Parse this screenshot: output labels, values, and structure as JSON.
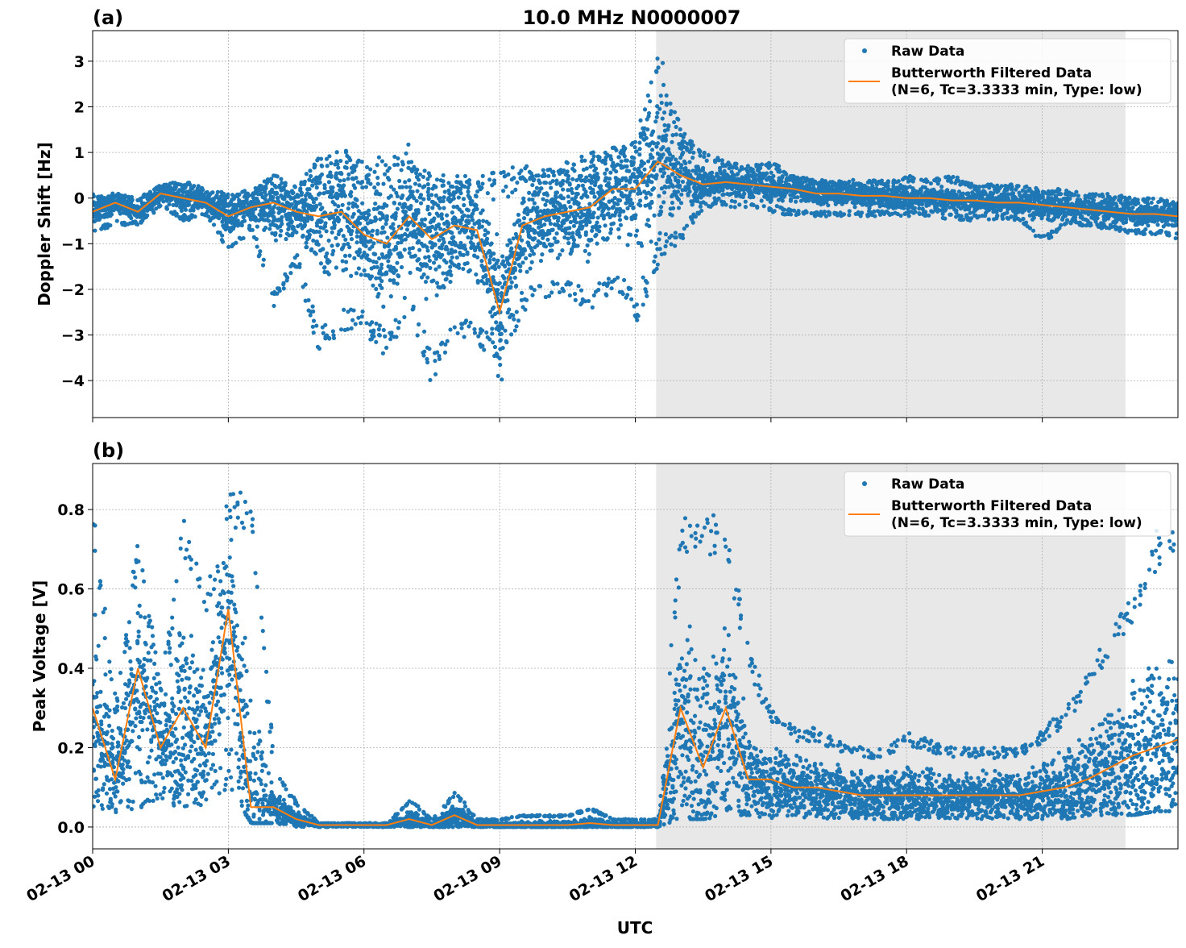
{
  "title": "10.0 MHz N0000007",
  "xlabel": "UTC",
  "x_ticks": [
    "02-13 00",
    "02-13 03",
    "02-13 06",
    "02-13 09",
    "02-13 12",
    "02-13 15",
    "02-13 18",
    "02-13 21"
  ],
  "colors": {
    "raw": "#1f77b4",
    "filtered": "#ff7f0e",
    "shade": "#e8e8e8"
  },
  "chart_data": [
    {
      "type": "scatter",
      "panel_label": "(a)",
      "ylabel": "Doppler Shift [Hz]",
      "x_unit": "hours since 02-13 00 UTC",
      "xlim": [
        0,
        24
      ],
      "ylim": [
        -4.81,
        3.67
      ],
      "y_ticks": [
        "−4",
        "−3",
        "−2",
        "−1",
        "0",
        "1",
        "2",
        "3"
      ],
      "y_tick_values": [
        -4,
        -3,
        -2,
        -1,
        0,
        1,
        2,
        3
      ],
      "grid": true,
      "legend_placement": "top-right",
      "shaded_interval_hours": [
        12.46,
        22.84
      ],
      "legend": [
        "Raw Data",
        "Butterworth Filtered Data",
        "(N=6, Tc=3.3333 min, Type: low)"
      ],
      "x": [
        0,
        0.5,
        1,
        1.5,
        2,
        2.5,
        3,
        3.5,
        4,
        4.5,
        5,
        5.5,
        6,
        6.5,
        7,
        7.5,
        8,
        8.5,
        9,
        9.5,
        10,
        10.5,
        11,
        11.5,
        12,
        12.5,
        13,
        13.5,
        14,
        14.5,
        15,
        15.5,
        16,
        16.5,
        17,
        17.5,
        18,
        18.5,
        19,
        19.5,
        20,
        20.5,
        21,
        21.5,
        22,
        22.5,
        23,
        23.5,
        24
      ],
      "filtered": [
        -0.3,
        -0.1,
        -0.3,
        0.1,
        0,
        -0.1,
        -0.4,
        -0.2,
        -0.1,
        -0.3,
        -0.4,
        -0.3,
        -0.8,
        -1.0,
        -0.4,
        -0.9,
        -0.6,
        -0.7,
        -2.5,
        -0.6,
        -0.4,
        -0.3,
        -0.2,
        0.2,
        0.2,
        0.8,
        0.5,
        0.3,
        0.35,
        0.3,
        0.25,
        0.2,
        0.1,
        0.1,
        0.05,
        0.05,
        0.0,
        0.0,
        -0.05,
        -0.05,
        -0.1,
        -0.1,
        -0.15,
        -0.2,
        -0.25,
        -0.3,
        -0.35,
        -0.35,
        -0.4
      ],
      "raw_min": [
        -0.8,
        -0.6,
        -0.6,
        -0.2,
        -0.5,
        -0.4,
        -1.2,
        -0.7,
        -2.4,
        -1.5,
        -3.5,
        -3.0,
        -3.0,
        -3.5,
        -2.5,
        -4.2,
        -3.0,
        -3.2,
        -4.1,
        -2.5,
        -2.3,
        -2.2,
        -2.5,
        -2.0,
        -2.7,
        -1.5,
        -1.0,
        -0.2,
        -0.2,
        -0.2,
        -0.3,
        -0.4,
        -0.4,
        -0.4,
        -0.4,
        -0.4,
        -0.4,
        -0.4,
        -0.5,
        -0.5,
        -0.5,
        -0.5,
        -1.0,
        -0.6,
        -0.6,
        -0.7,
        -0.8,
        -0.8,
        -0.9
      ],
      "raw_max": [
        0.1,
        0.1,
        0,
        0.3,
        0.4,
        0.2,
        0.1,
        0.2,
        0.5,
        0.3,
        0.9,
        1.1,
        0.8,
        1.0,
        1.2,
        0.5,
        0.5,
        0.5,
        0.6,
        0.8,
        0.6,
        0.8,
        1.1,
        1.1,
        1.3,
        3.3,
        1.5,
        1.0,
        0.8,
        0.7,
        0.8,
        0.5,
        0.4,
        0.4,
        0.4,
        0.4,
        0.5,
        0.4,
        0.5,
        0.3,
        0.3,
        0.3,
        0.2,
        0.2,
        0.1,
        0.1,
        0,
        0,
        -0.1
      ]
    },
    {
      "type": "scatter",
      "panel_label": "(b)",
      "ylabel": "Peak Voltage [V]",
      "x_unit": "hours since 02-13 00 UTC",
      "xlim": [
        0,
        24
      ],
      "ylim": [
        -0.055,
        0.916
      ],
      "y_ticks": [
        "0.0",
        "0.2",
        "0.4",
        "0.6",
        "0.8"
      ],
      "y_tick_values": [
        0,
        0.2,
        0.4,
        0.6,
        0.8
      ],
      "grid": true,
      "legend_placement": "top-right",
      "shaded_interval_hours": [
        12.46,
        22.84
      ],
      "legend": [
        "Raw Data",
        "Butterworth Filtered Data",
        "(N=6, Tc=3.3333 min, Type: low)"
      ],
      "x": [
        0,
        0.5,
        1,
        1.5,
        2,
        2.5,
        3,
        3.5,
        4,
        4.5,
        5,
        5.5,
        6,
        6.5,
        7,
        7.5,
        8,
        8.5,
        9,
        9.5,
        10,
        10.5,
        11,
        11.5,
        12,
        12.5,
        13,
        13.5,
        14,
        14.5,
        15,
        15.5,
        16,
        16.5,
        17,
        17.5,
        18,
        18.5,
        19,
        19.5,
        20,
        20.5,
        21,
        21.5,
        22,
        22.5,
        23,
        23.5,
        24
      ],
      "filtered": [
        0.3,
        0.12,
        0.4,
        0.2,
        0.3,
        0.2,
        0.55,
        0.05,
        0.05,
        0.02,
        0.005,
        0.005,
        0.005,
        0.005,
        0.02,
        0.005,
        0.03,
        0.005,
        0.005,
        0.005,
        0.005,
        0.005,
        0.01,
        0.005,
        0.005,
        0.005,
        0.3,
        0.15,
        0.3,
        0.12,
        0.12,
        0.1,
        0.1,
        0.09,
        0.08,
        0.08,
        0.08,
        0.08,
        0.08,
        0.08,
        0.08,
        0.08,
        0.09,
        0.1,
        0.12,
        0.15,
        0.18,
        0.2,
        0.22
      ],
      "raw_min": [
        0.05,
        0.03,
        0.05,
        0.05,
        0.05,
        0.05,
        0.1,
        0.01,
        0.01,
        0.0,
        0.0,
        0.0,
        0.0,
        0.0,
        0.0,
        0.0,
        0.0,
        0.0,
        0.0,
        0.0,
        0.0,
        0.0,
        0.0,
        0.0,
        0.0,
        0.0,
        0.02,
        0.02,
        0.03,
        0.03,
        0.02,
        0.02,
        0.02,
        0.02,
        0.02,
        0.02,
        0.02,
        0.02,
        0.02,
        0.02,
        0.02,
        0.02,
        0.02,
        0.02,
        0.03,
        0.03,
        0.03,
        0.04,
        0.04
      ],
      "raw_max": [
        0.8,
        0.3,
        0.75,
        0.35,
        0.8,
        0.6,
        0.85,
        0.87,
        0.15,
        0.06,
        0.01,
        0.01,
        0.01,
        0.01,
        0.07,
        0.02,
        0.09,
        0.02,
        0.02,
        0.03,
        0.03,
        0.03,
        0.05,
        0.02,
        0.02,
        0.02,
        0.79,
        0.82,
        0.75,
        0.45,
        0.3,
        0.25,
        0.25,
        0.22,
        0.2,
        0.2,
        0.24,
        0.22,
        0.2,
        0.2,
        0.2,
        0.2,
        0.25,
        0.3,
        0.4,
        0.5,
        0.6,
        0.75,
        0.75
      ]
    }
  ]
}
